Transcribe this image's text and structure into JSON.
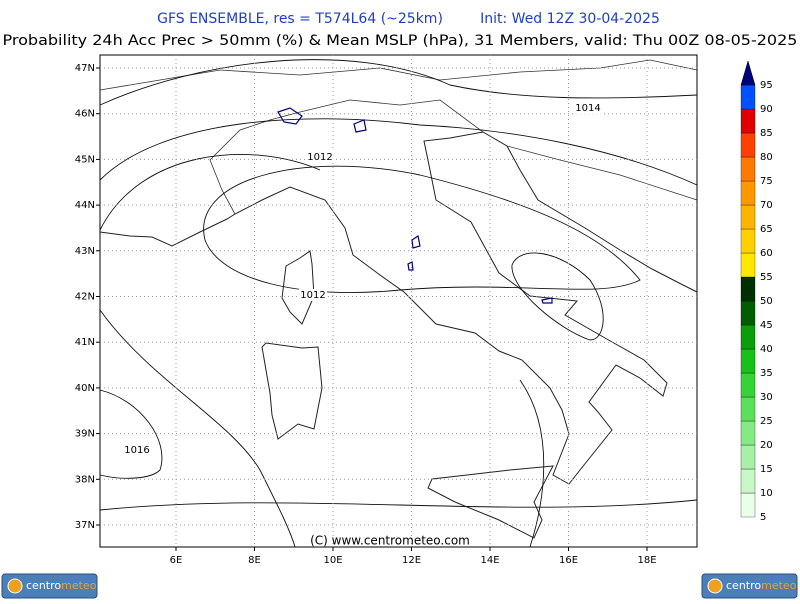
{
  "header": {
    "title": "GFS ENSEMBLE, res = T574L64 (~25km)",
    "init": "Init: Wed 12Z 30-04-2025",
    "subtitle": "Probability 24h Acc Prec > 50mm (%) & Mean MSLP (hPa), 31 Members, valid: Thu 00Z 08-05-2025"
  },
  "map": {
    "lat_labels": [
      "47N",
      "46N",
      "45N",
      "44N",
      "43N",
      "42N",
      "41N",
      "40N",
      "39N",
      "38N",
      "37N"
    ],
    "lon_labels": [
      "6E",
      "8E",
      "10E",
      "12E",
      "14E",
      "16E",
      "18E"
    ],
    "isobar_labels": [
      "1014",
      "1012",
      "1012",
      "1016"
    ],
    "credit": "(C) www.centrometeo.com"
  },
  "colorbar": {
    "levels": [
      {
        "value": 5,
        "color": "#eaffea"
      },
      {
        "value": 10,
        "color": "#c8f8c8"
      },
      {
        "value": 15,
        "color": "#a8f0a8"
      },
      {
        "value": 20,
        "color": "#84ea84"
      },
      {
        "value": 25,
        "color": "#5ce05c"
      },
      {
        "value": 30,
        "color": "#34d434"
      },
      {
        "value": 35,
        "color": "#18c018"
      },
      {
        "value": 40,
        "color": "#0a9e0a"
      },
      {
        "value": 45,
        "color": "#005c00"
      },
      {
        "value": 50,
        "color": "#003000"
      },
      {
        "value": 55,
        "color": "#ffe800"
      },
      {
        "value": 60,
        "color": "#ffd000"
      },
      {
        "value": 65,
        "color": "#ffb400"
      },
      {
        "value": 70,
        "color": "#ff9800"
      },
      {
        "value": 75,
        "color": "#ff7800"
      },
      {
        "value": 80,
        "color": "#ff4000"
      },
      {
        "value": 85,
        "color": "#e00000"
      },
      {
        "value": 90,
        "color": "#0050ff"
      },
      {
        "value": 95,
        "color": "#00007c"
      }
    ]
  },
  "logos": [
    {
      "left": "centro",
      "right": "meteo"
    },
    {
      "left": "centro",
      "right": "meteo"
    }
  ]
}
